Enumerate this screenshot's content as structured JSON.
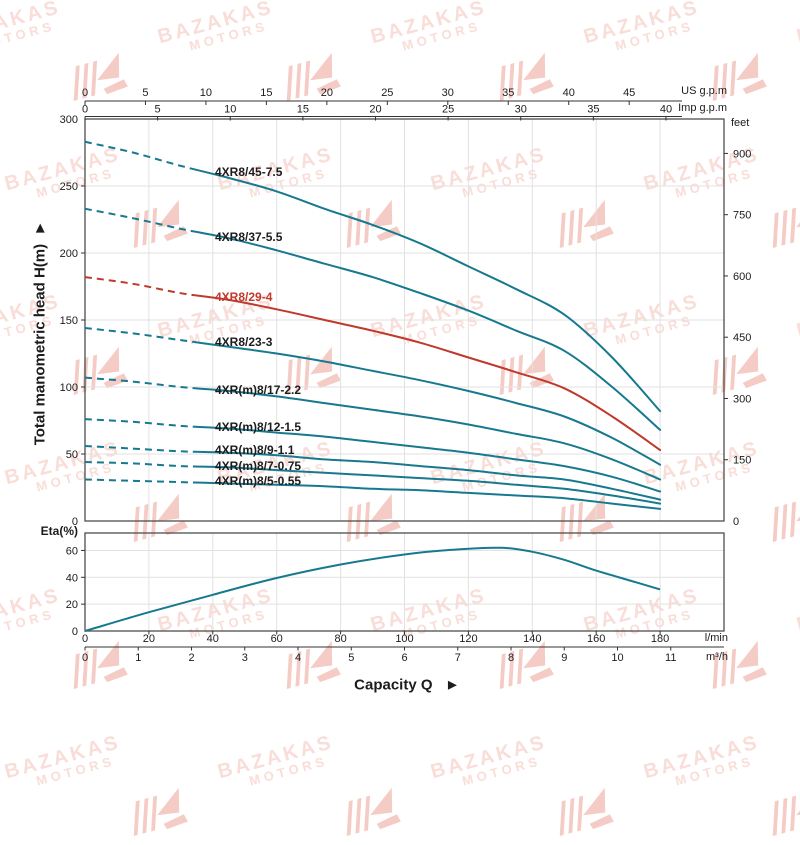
{
  "watermark": {
    "line1": "BAZAKAS",
    "line2": "MOTORS"
  },
  "colors": {
    "curve_teal": "#17798f",
    "curve_red": "#c0392b",
    "grid": "#e2e2e2",
    "frame": "#4d4d4d",
    "axis": "#333333",
    "text": "#1c1c1c",
    "watermark_text": "#f9ddd8",
    "watermark_logo": "#f5ccc5"
  },
  "axes": {
    "us_gpm": {
      "label": "US g.p.m",
      "ticks": [
        0,
        5,
        10,
        15,
        20,
        25,
        30,
        35,
        40,
        45
      ]
    },
    "imp_gpm": {
      "label": "Imp g.p.m",
      "ticks": [
        0,
        5,
        10,
        15,
        20,
        25,
        30,
        35,
        40
      ]
    },
    "head_m": {
      "label": "Total manometric head H(m)  ►",
      "ticks": [
        0,
        50,
        100,
        150,
        200,
        250,
        300
      ]
    },
    "feet": {
      "label": "feet",
      "ticks": [
        0,
        150,
        300,
        450,
        600,
        750,
        900
      ]
    },
    "lmin": {
      "label": "l/min",
      "ticks": [
        0,
        20,
        40,
        60,
        80,
        100,
        120,
        140,
        160,
        180
      ]
    },
    "m3h": {
      "label": "m³/h",
      "ticks": [
        0,
        1,
        2,
        3,
        4,
        5,
        6,
        7,
        8,
        9,
        10,
        11
      ]
    },
    "eta": {
      "label": "Eta(%)",
      "ticks": [
        0,
        20,
        40,
        60
      ]
    },
    "capacity": {
      "label": "Capacity Q   ►"
    }
  },
  "chart_data": [
    {
      "type": "line",
      "title": "Pump head curves",
      "xlabel": "Capacity Q",
      "ylabel": "Total manometric head H(m)",
      "x_units": [
        "l/min",
        "m³/h",
        "US g.p.m",
        "Imp g.p.m"
      ],
      "y_units": [
        "m",
        "feet"
      ],
      "xlim": [
        0,
        200
      ],
      "ylim": [
        0,
        300
      ],
      "grid": true,
      "legend_position": "inline-labels",
      "dashed_until_lmin": 34,
      "x": [
        0,
        15,
        30,
        45,
        60,
        75,
        90,
        105,
        120,
        135,
        150,
        165,
        180
      ],
      "series": [
        {
          "name": "4XR8/45-7.5",
          "color": "#17798f",
          "values": [
            283,
            275,
            265,
            256,
            246,
            233,
            221,
            207,
            190,
            173,
            154,
            122,
            82
          ]
        },
        {
          "name": "4XR8/37-5.5",
          "color": "#17798f",
          "values": [
            233,
            226,
            218,
            211,
            202,
            192,
            182,
            170,
            157,
            142,
            127,
            100,
            68
          ]
        },
        {
          "name": "4XR8/29-4",
          "color": "#c0392b",
          "values": [
            182,
            177,
            170,
            165,
            158,
            150,
            142,
            133,
            122,
            111,
            99,
            78,
            53
          ]
        },
        {
          "name": "4XR8/23-3",
          "color": "#17798f",
          "values": [
            144,
            140,
            135,
            130,
            125,
            119,
            112,
            105,
            97,
            88,
            78,
            62,
            42
          ]
        },
        {
          "name": "4XR(m)8/17-2.2",
          "color": "#17798f",
          "values": [
            107,
            104,
            100,
            97,
            93,
            88,
            83,
            78,
            72,
            65,
            58,
            46,
            31
          ]
        },
        {
          "name": "4XR(m)8/12-1.5",
          "color": "#17798f",
          "values": [
            76,
            74,
            71,
            69,
            66,
            63,
            59,
            55,
            51,
            46,
            41,
            33,
            22
          ]
        },
        {
          "name": "4XR(m)8/9-1.1",
          "color": "#17798f",
          "values": [
            56,
            54,
            52,
            51,
            49,
            46,
            44,
            41,
            38,
            34,
            31,
            24,
            16
          ]
        },
        {
          "name": "4XR(m)8/7-0.75",
          "color": "#17798f",
          "values": [
            44,
            43,
            41,
            40,
            38,
            36,
            34,
            32,
            30,
            27,
            24,
            19,
            13
          ]
        },
        {
          "name": "4XR(m)8/5-0.55",
          "color": "#17798f",
          "values": [
            31,
            30,
            29,
            28,
            27,
            26,
            24,
            23,
            21,
            19,
            17,
            13,
            9
          ]
        }
      ]
    },
    {
      "type": "line",
      "title": "Efficiency curve",
      "xlabel": "Capacity Q",
      "ylabel": "Eta(%)",
      "xlim": [
        0,
        200
      ],
      "ylim": [
        0,
        73
      ],
      "grid": true,
      "x": [
        0,
        20,
        40,
        60,
        80,
        100,
        115,
        130,
        140,
        150,
        160,
        170,
        180
      ],
      "series": [
        {
          "name": "Eta(%)",
          "color": "#17798f",
          "values": [
            0,
            14,
            27,
            39.5,
            49.5,
            57,
            60.5,
            62,
            59,
            53,
            45,
            38,
            31
          ]
        }
      ]
    }
  ]
}
